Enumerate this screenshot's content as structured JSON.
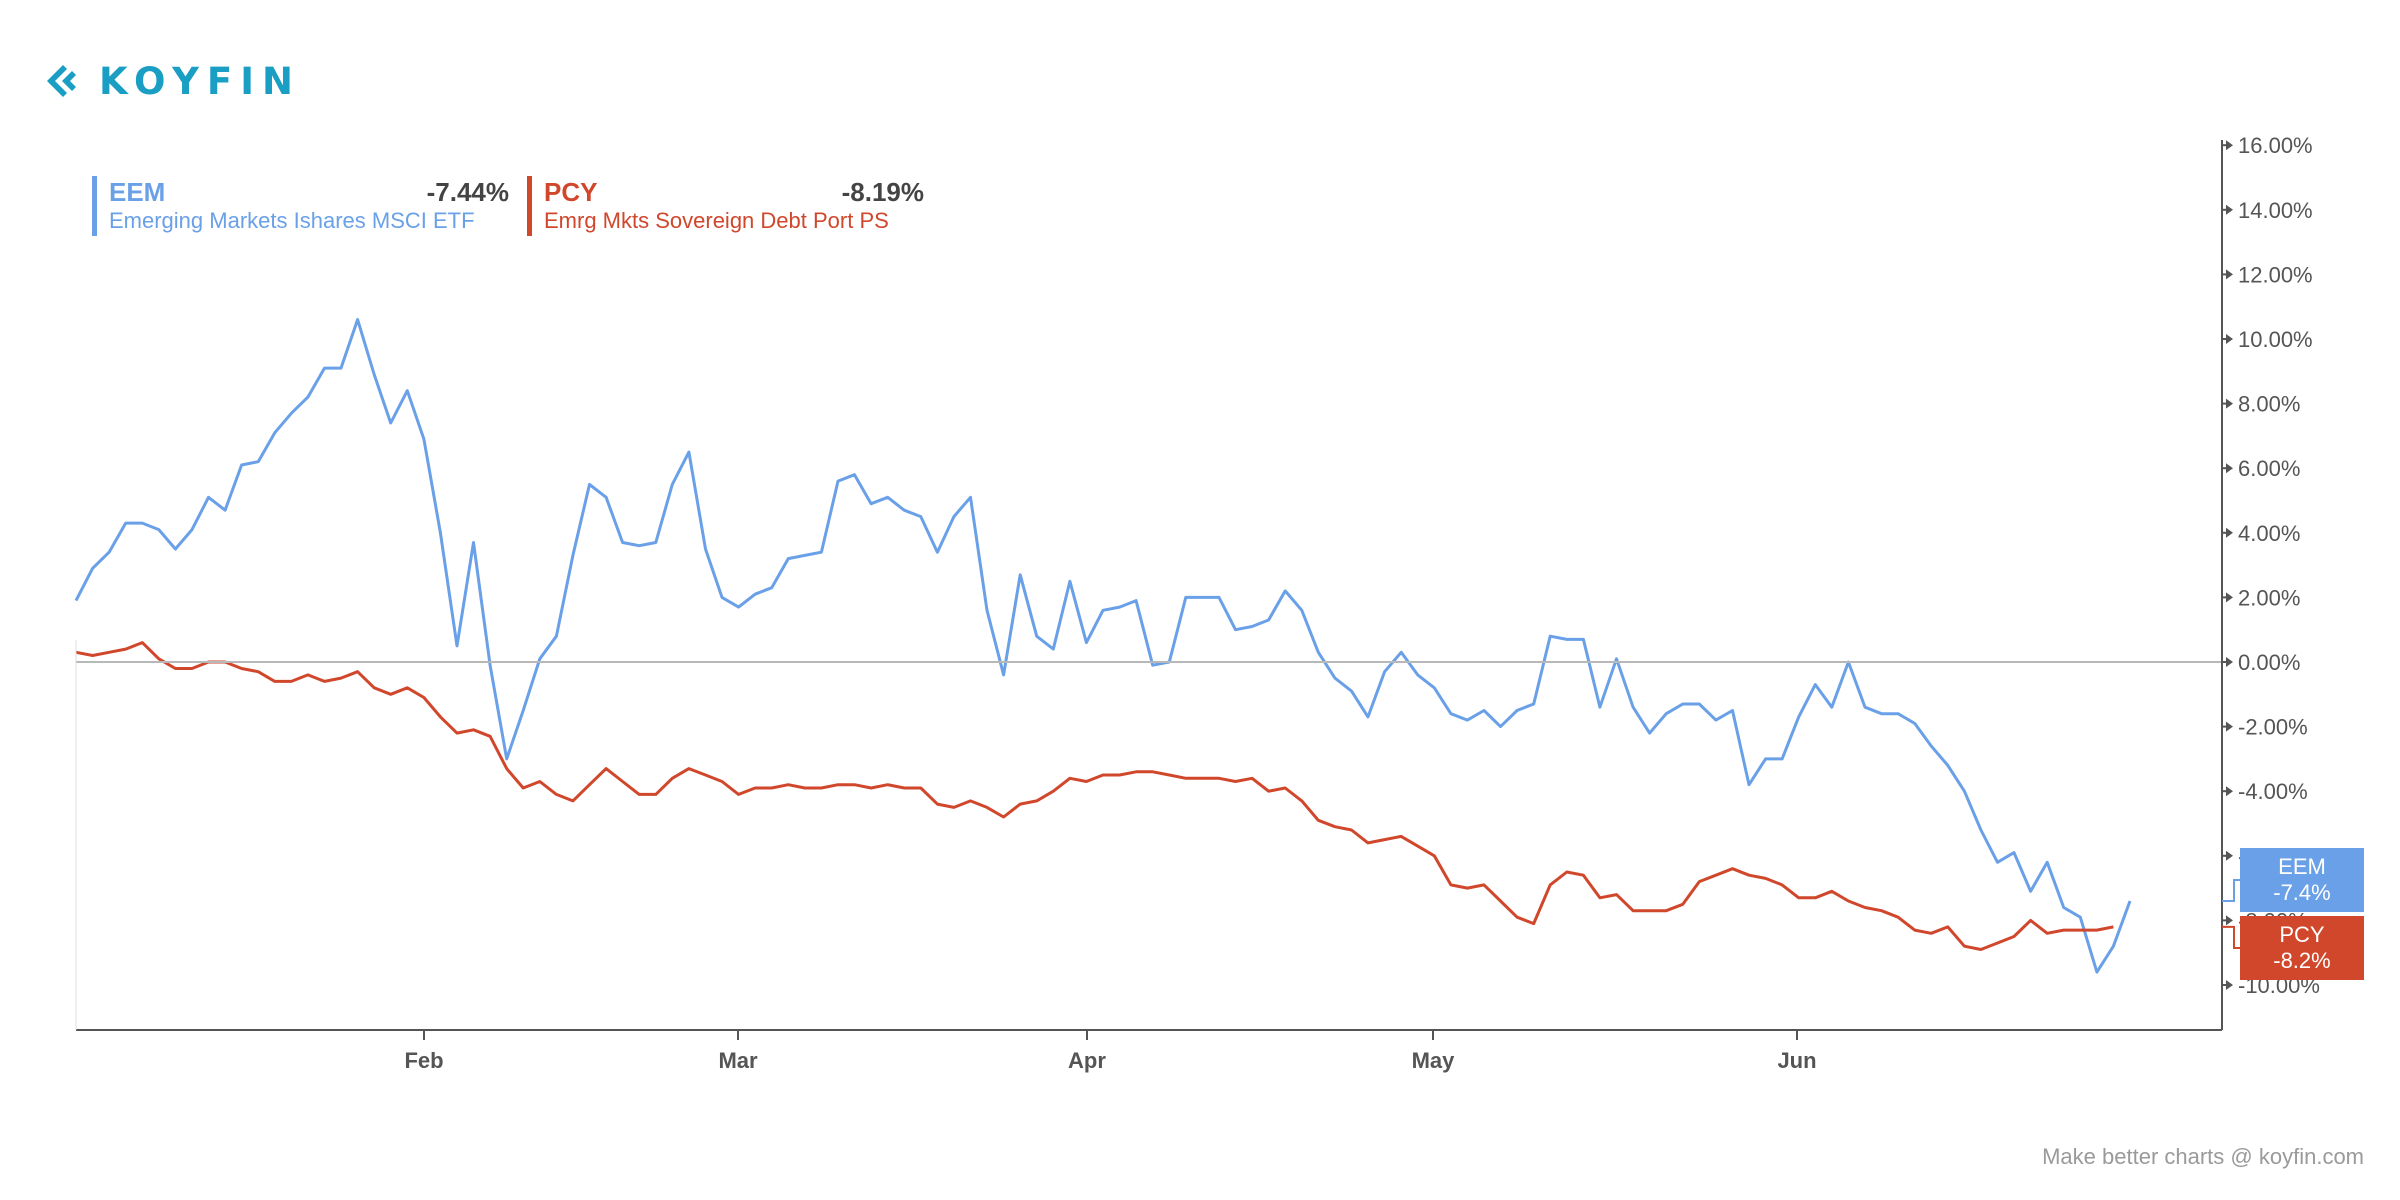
{
  "brand": {
    "name": "KOYFIN",
    "color": "#1a9ec4",
    "icon": "koyfin-chevron-logo-icon"
  },
  "footer": {
    "text": "Make better charts @ koyfin.com"
  },
  "legend": [
    {
      "ticker": "EEM",
      "value": "-7.44%",
      "name": "Emerging Markets Ishares MSCI ETF",
      "color": "#6aa0e8"
    },
    {
      "ticker": "PCY",
      "value": "-8.19%",
      "name": "Emrg Mkts Sovereign Debt Port PS",
      "color": "#d0472c"
    }
  ],
  "chart_data": {
    "type": "line",
    "x_ticks": [
      "Feb",
      "Mar",
      "Apr",
      "May",
      "Jun"
    ],
    "y_ticks": [
      "16.00%",
      "14.00%",
      "12.00%",
      "10.00%",
      "8.00%",
      "6.00%",
      "4.00%",
      "2.00%",
      "0.00%",
      "-2.00%",
      "-4.00%",
      "-6.00%",
      "-8.00%",
      "-10.00%"
    ],
    "ylim": [
      -11.5,
      16.5
    ],
    "y_axis_position": "right",
    "zero_line": true,
    "grid": false,
    "legend_position": "top-left",
    "series": [
      {
        "name": "EEM",
        "color": "#6aa0e8",
        "last_label": [
          "EEM",
          "-7.4%"
        ],
        "values": [
          1.9,
          2.9,
          3.4,
          4.3,
          4.3,
          4.1,
          3.5,
          4.1,
          5.1,
          4.7,
          6.1,
          6.2,
          7.1,
          7.7,
          8.2,
          9.1,
          9.1,
          10.6,
          8.9,
          7.4,
          8.4,
          6.9,
          4.0,
          0.5,
          3.7,
          -0.1,
          -3.0,
          -1.5,
          0.1,
          0.8,
          3.3,
          5.5,
          5.1,
          3.7,
          3.6,
          3.7,
          5.5,
          6.5,
          3.5,
          2.0,
          1.7,
          2.1,
          2.3,
          3.2,
          3.3,
          3.4,
          5.6,
          5.8,
          4.9,
          5.1,
          4.7,
          4.5,
          3.4,
          4.5,
          5.1,
          1.6,
          -0.4,
          2.7,
          0.8,
          0.4,
          2.5,
          0.6,
          1.6,
          1.7,
          1.9,
          -0.1,
          0.0,
          2.0,
          2.0,
          2.0,
          1.0,
          1.1,
          1.3,
          2.2,
          1.6,
          0.3,
          -0.5,
          -0.9,
          -1.7,
          -0.3,
          0.3,
          -0.4,
          -0.8,
          -1.6,
          -1.8,
          -1.5,
          -2.0,
          -1.5,
          -1.3,
          0.8,
          0.7,
          0.7,
          -1.4,
          0.1,
          -1.4,
          -2.2,
          -1.6,
          -1.3,
          -1.3,
          -1.8,
          -1.5,
          -3.8,
          -3.0,
          -3.0,
          -1.7,
          -0.7,
          -1.4,
          0.0,
          -1.4,
          -1.6,
          -1.6,
          -1.9,
          -2.6,
          -3.2,
          -4.0,
          -5.2,
          -6.2,
          -5.9,
          -7.1,
          -6.2,
          -7.6,
          -7.9,
          -9.6,
          -8.8,
          -7.4
        ]
      },
      {
        "name": "PCY",
        "color": "#d0472c",
        "last_label": [
          "PCY",
          "-8.2%"
        ],
        "values": [
          0.3,
          0.2,
          0.3,
          0.4,
          0.6,
          0.1,
          -0.2,
          -0.2,
          0.0,
          0.0,
          -0.2,
          -0.3,
          -0.6,
          -0.6,
          -0.4,
          -0.6,
          -0.5,
          -0.3,
          -0.8,
          -1.0,
          -0.8,
          -1.1,
          -1.7,
          -2.2,
          -2.1,
          -2.3,
          -3.3,
          -3.9,
          -3.7,
          -4.1,
          -4.3,
          -3.8,
          -3.3,
          -3.7,
          -4.1,
          -4.1,
          -3.6,
          -3.3,
          -3.5,
          -3.7,
          -4.1,
          -3.9,
          -3.9,
          -3.8,
          -3.9,
          -3.9,
          -3.8,
          -3.8,
          -3.9,
          -3.8,
          -3.9,
          -3.9,
          -4.4,
          -4.5,
          -4.3,
          -4.5,
          -4.8,
          -4.4,
          -4.3,
          -4.0,
          -3.6,
          -3.7,
          -3.5,
          -3.5,
          -3.4,
          -3.4,
          -3.5,
          -3.6,
          -3.6,
          -3.6,
          -3.7,
          -3.6,
          -4.0,
          -3.9,
          -4.3,
          -4.9,
          -5.1,
          -5.2,
          -5.6,
          -5.5,
          -5.4,
          -5.7,
          -6.0,
          -6.9,
          -7.0,
          -6.9,
          -7.4,
          -7.9,
          -8.1,
          -6.9,
          -6.5,
          -6.6,
          -7.3,
          -7.2,
          -7.7,
          -7.7,
          -7.7,
          -7.5,
          -6.8,
          -6.6,
          -6.4,
          -6.6,
          -6.7,
          -6.9,
          -7.3,
          -7.3,
          -7.1,
          -7.4,
          -7.6,
          -7.7,
          -7.9,
          -8.3,
          -8.4,
          -8.2,
          -8.8,
          -8.9,
          -8.7,
          -8.5,
          -8.0,
          -8.4,
          -8.3,
          -8.3,
          -8.3,
          -8.2
        ]
      }
    ]
  }
}
